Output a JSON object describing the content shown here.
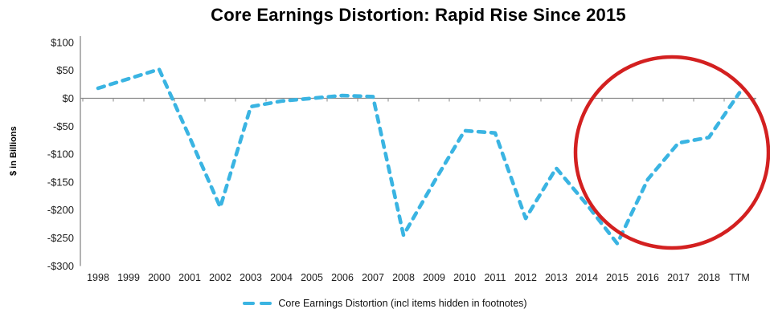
{
  "colors": {
    "line": "#3ab4e2",
    "highlight_circle": "#d32020",
    "axis": "#8a8a8a",
    "label_text": "#1c1c1c",
    "title_text": "#000000",
    "background": "#ffffff"
  },
  "chart_data": {
    "type": "line",
    "line_style": "dashed",
    "title": "Core Earnings Distortion: Rapid Rise Since 2015",
    "xlabel": "",
    "ylabel": "$ in Billions",
    "units": "$ in Billions",
    "ylim": [
      -300,
      100
    ],
    "y_tick_step": 50,
    "y_tick_labels": [
      "$100",
      "$50",
      "$0",
      "-$50",
      "-$100",
      "-$150",
      "-$200",
      "-$250",
      "-$300"
    ],
    "categories": [
      "1998",
      "1999",
      "2000",
      "2001",
      "2002",
      "2003",
      "2004",
      "2005",
      "2006",
      "2007",
      "2008",
      "2009",
      "2010",
      "2011",
      "2012",
      "2013",
      "2014",
      "2015",
      "2016",
      "2017",
      "2018",
      "TTM"
    ],
    "series": [
      {
        "name": "Core Earnings Distortion (incl items hidden in footnotes)",
        "values": [
          18,
          35,
          52,
          -70,
          -195,
          -15,
          -5,
          0,
          5,
          3,
          -245,
          -150,
          -58,
          -62,
          -215,
          -125,
          -190,
          -260,
          -145,
          -80,
          -70,
          10
        ]
      }
    ],
    "legend_position": "bottom",
    "grid": false,
    "annotations": [
      {
        "type": "circle",
        "purpose": "highlights rapid rise of distortion since 2015",
        "covers_categories": [
          "2015",
          "TTM"
        ],
        "center_value": -97,
        "color": "#d32020"
      }
    ]
  }
}
